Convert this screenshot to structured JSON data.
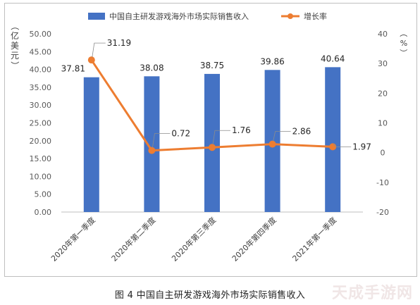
{
  "chart_data": {
    "type": "bar",
    "title": "",
    "categories": [
      "2020年第一季度",
      "2020年第二季度",
      "2020年第三季度",
      "2020年第四季度",
      "2021年第一季度"
    ],
    "series": [
      {
        "name": "中国自主研发游戏海外市场实际销售收入",
        "values": [
          37.81,
          38.08,
          38.75,
          39.86,
          40.64
        ],
        "axis": "left",
        "kind": "bar",
        "color": "#4472c4"
      },
      {
        "name": "增长率",
        "values": [
          31.19,
          0.72,
          1.76,
          2.86,
          1.97
        ],
        "axis": "right",
        "kind": "line",
        "color": "#ed7d31"
      }
    ],
    "ylabel": "亿美元",
    "y2label": "%",
    "ylim": [
      0,
      50
    ],
    "y2lim": [
      -20,
      40
    ],
    "yticks": [
      "0.00",
      "5.00",
      "10.00",
      "15.00",
      "20.00",
      "25.00",
      "30.00",
      "35.00",
      "40.00",
      "45.00",
      "50.00"
    ],
    "y2ticks": [
      "-20",
      "-10",
      "0",
      "10",
      "20",
      "30",
      "40"
    ],
    "bar_labels": [
      "37.81",
      "38.08",
      "38.75",
      "39.86",
      "40.64"
    ],
    "line_labels": [
      "31.19",
      "0.72",
      "1.76",
      "2.86",
      "1.97"
    ],
    "legend_position": "top",
    "grid": false
  },
  "caption": "图 4  中国自主研发游戏海外市场实际销售收入",
  "watermark": "天成手游网"
}
